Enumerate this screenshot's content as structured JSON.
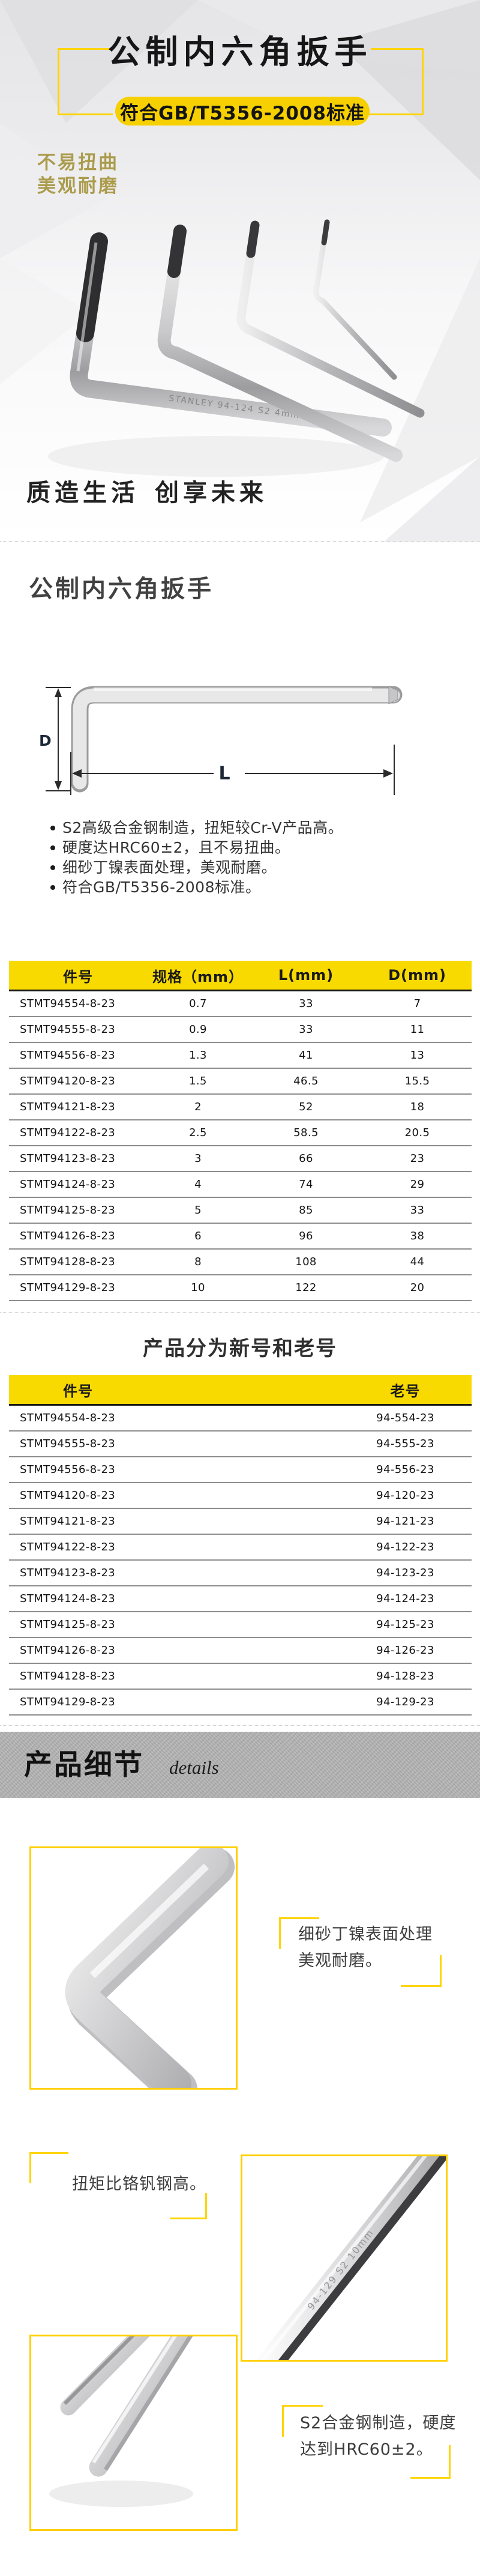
{
  "hero": {
    "title": "公制内六角扳手",
    "badge": "符合GB/T5356-2008标准",
    "slogan_line1": "不易扭曲",
    "slogan_line2": "美观耐磨",
    "photo_engraving": "STANLEY 94-124 S2 4mm",
    "tagline_part1": "质造生活",
    "tagline_part2": "创享未来"
  },
  "intro": {
    "heading": "公制内六角扳手",
    "diagram": {
      "label_d": "D",
      "label_l": "L"
    },
    "features": [
      "S2高级合金钢制造，扭矩较Cr-V产品高。",
      "硬度达HRC60±2，且不易扭曲。",
      "细砂丁镍表面处理，美观耐磨。",
      "符合GB/T5356-2008标准。"
    ]
  },
  "spec_table": {
    "headers": [
      "件号",
      "规格（mm）",
      "L(mm)",
      "D(mm)"
    ],
    "rows": [
      [
        "STMT94554-8-23",
        "0.7",
        "33",
        "7"
      ],
      [
        "STMT94555-8-23",
        "0.9",
        "33",
        "11"
      ],
      [
        "STMT94556-8-23",
        "1.3",
        "41",
        "13"
      ],
      [
        "STMT94120-8-23",
        "1.5",
        "46.5",
        "15.5"
      ],
      [
        "STMT94121-8-23",
        "2",
        "52",
        "18"
      ],
      [
        "STMT94122-8-23",
        "2.5",
        "58.5",
        "20.5"
      ],
      [
        "STMT94123-8-23",
        "3",
        "66",
        "23"
      ],
      [
        "STMT94124-8-23",
        "4",
        "74",
        "29"
      ],
      [
        "STMT94125-8-23",
        "5",
        "85",
        "33"
      ],
      [
        "STMT94126-8-23",
        "6",
        "96",
        "38"
      ],
      [
        "STMT94128-8-23",
        "8",
        "108",
        "44"
      ],
      [
        "STMT94129-8-23",
        "10",
        "122",
        "20"
      ]
    ]
  },
  "mapping_table": {
    "title": "产品分为新号和老号",
    "headers": [
      "件号",
      "老号"
    ],
    "rows": [
      [
        "STMT94554-8-23",
        "94-554-23"
      ],
      [
        "STMT94555-8-23",
        "94-555-23"
      ],
      [
        "STMT94556-8-23",
        "94-556-23"
      ],
      [
        "STMT94120-8-23",
        "94-120-23"
      ],
      [
        "STMT94121-8-23",
        "94-121-23"
      ],
      [
        "STMT94122-8-23",
        "94-122-23"
      ],
      [
        "STMT94123-8-23",
        "94-123-23"
      ],
      [
        "STMT94124-8-23",
        "94-124-23"
      ],
      [
        "STMT94125-8-23",
        "94-125-23"
      ],
      [
        "STMT94126-8-23",
        "94-126-23"
      ],
      [
        "STMT94128-8-23",
        "94-128-23"
      ],
      [
        "STMT94129-8-23",
        "94-129-23"
      ]
    ]
  },
  "details": {
    "title": "产品细节",
    "subtitle": "details",
    "item1_line1": "细砂丁镍表面处理",
    "item1_line2": "美观耐磨。",
    "item2_line1": "扭矩比铬钒钢高。",
    "item3_line1": "S2合金钢制造，硬度",
    "item3_line2": "达到HRC60±2。",
    "box2_engraving": "94-129 S2 10mm"
  },
  "colors": {
    "accent_yellow": "#f8da00",
    "frame_yellow": "#ffd400",
    "box_border_yellow": "#ffcf00",
    "gold_text": "#ab9c4d",
    "banner_gray": "#b4b4b4"
  }
}
